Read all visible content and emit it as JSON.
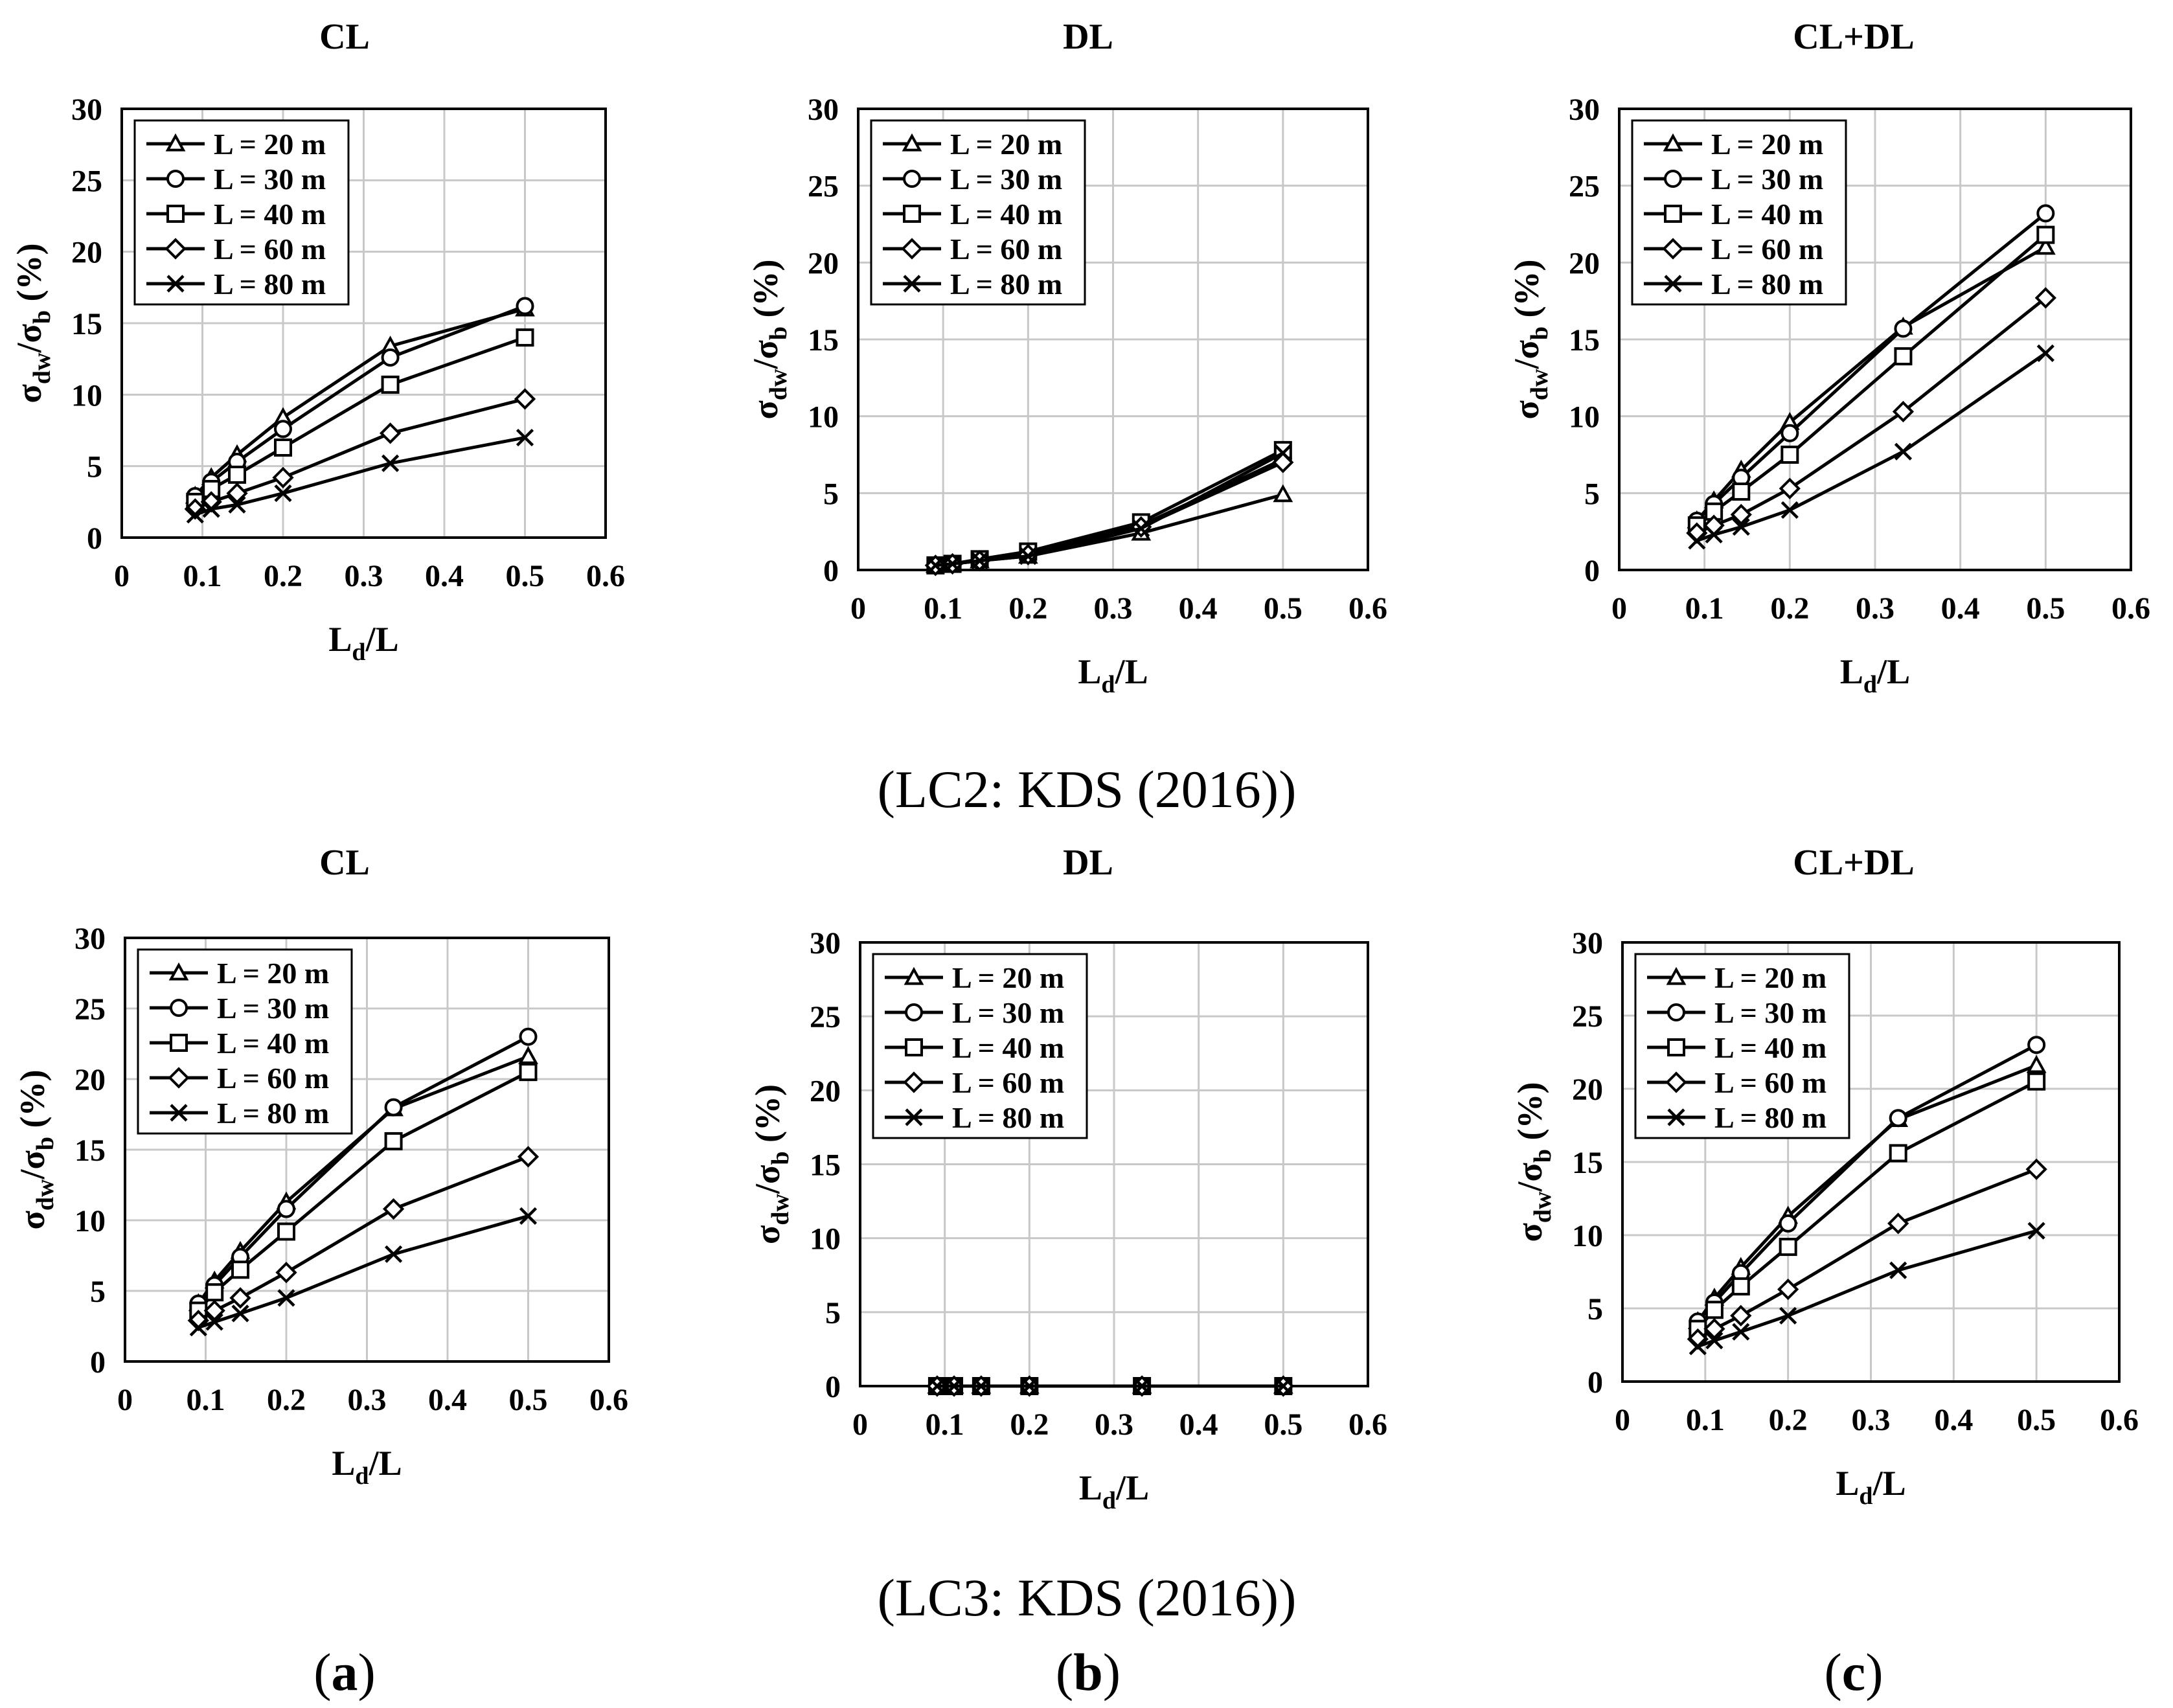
{
  "figure": {
    "row_captions": [
      "(LC2: KDS (2016))",
      "(LC3: KDS (2016))"
    ],
    "col_labels": [
      {
        "open": "(",
        "letter": "a",
        "close": ")"
      },
      {
        "open": "(",
        "letter": "b",
        "close": ")"
      },
      {
        "open": "(",
        "letter": "c",
        "close": ")"
      }
    ]
  },
  "chart_data": [
    {
      "type": "line",
      "row": "LC2",
      "title": "CL",
      "xlabel": "Ld/L",
      "ylabel": "σdw/σb (%)",
      "xlim": [
        0,
        0.6
      ],
      "ylim": [
        0,
        30
      ],
      "xticks": [
        "0",
        "0.1",
        "0.2",
        "0.3",
        "0.4",
        "0.5",
        "0.6"
      ],
      "yticks": [
        "0",
        "5",
        "10",
        "15",
        "20",
        "25",
        "30"
      ],
      "grid": true,
      "legend": "top-left",
      "x": [
        0.091,
        0.111,
        0.143,
        0.2,
        0.333,
        0.5
      ],
      "series": [
        {
          "name": "L = 20 m",
          "marker": "triangle",
          "values": [
            2.9,
            4.2,
            5.8,
            8.4,
            13.4,
            16.0
          ]
        },
        {
          "name": "L = 30 m",
          "marker": "circle",
          "values": [
            2.9,
            3.9,
            5.3,
            7.6,
            12.6,
            16.2
          ]
        },
        {
          "name": "L = 40 m",
          "marker": "square",
          "values": [
            2.5,
            3.4,
            4.4,
            6.3,
            10.7,
            14.0
          ]
        },
        {
          "name": "L = 60 m",
          "marker": "diamond",
          "values": [
            2.0,
            2.5,
            3.1,
            4.2,
            7.3,
            9.7
          ]
        },
        {
          "name": "L = 80 m",
          "marker": "x",
          "values": [
            1.6,
            2.0,
            2.3,
            3.1,
            5.2,
            7.0
          ]
        }
      ]
    },
    {
      "type": "line",
      "row": "LC2",
      "title": "DL",
      "xlabel": "Ld/L",
      "ylabel": "σdw/σb (%)",
      "xlim": [
        0,
        0.6
      ],
      "ylim": [
        0,
        30
      ],
      "xticks": [
        "0",
        "0.1",
        "0.2",
        "0.3",
        "0.4",
        "0.5",
        "0.6"
      ],
      "yticks": [
        "0",
        "5",
        "10",
        "15",
        "20",
        "25",
        "30"
      ],
      "grid": true,
      "legend": "top-left",
      "x": [
        0.091,
        0.111,
        0.143,
        0.2,
        0.333,
        0.5
      ],
      "series": [
        {
          "name": "L = 20 m",
          "marker": "triangle",
          "values": [
            0.3,
            0.4,
            0.6,
            0.9,
            2.4,
            4.9
          ]
        },
        {
          "name": "L = 30 m",
          "marker": "circle",
          "values": [
            0.3,
            0.4,
            0.6,
            1.1,
            2.9,
            7.2
          ]
        },
        {
          "name": "L = 40 m",
          "marker": "square",
          "values": [
            0.3,
            0.4,
            0.7,
            1.2,
            3.1,
            7.8
          ]
        },
        {
          "name": "L = 60 m",
          "marker": "diamond",
          "values": [
            0.3,
            0.4,
            0.6,
            1.0,
            2.8,
            7.0
          ]
        },
        {
          "name": "L = 80 m",
          "marker": "x",
          "values": [
            0.3,
            0.4,
            0.6,
            0.9,
            2.7,
            7.6
          ]
        }
      ]
    },
    {
      "type": "line",
      "row": "LC2",
      "title": "CL+DL",
      "xlabel": "Ld/L",
      "ylabel": "σdw/σb (%)",
      "xlim": [
        0,
        0.6
      ],
      "ylim": [
        0,
        30
      ],
      "xticks": [
        "0",
        "0.1",
        "0.2",
        "0.3",
        "0.4",
        "0.5",
        "0.6"
      ],
      "yticks": [
        "0",
        "5",
        "10",
        "15",
        "20",
        "25",
        "30"
      ],
      "grid": true,
      "legend": "top-left",
      "x": [
        0.091,
        0.111,
        0.143,
        0.2,
        0.333,
        0.5
      ],
      "series": [
        {
          "name": "L = 20 m",
          "marker": "triangle",
          "values": [
            3.2,
            4.5,
            6.5,
            9.6,
            15.8,
            21.0
          ]
        },
        {
          "name": "L = 30 m",
          "marker": "circle",
          "values": [
            3.2,
            4.3,
            6.0,
            8.9,
            15.7,
            23.2
          ]
        },
        {
          "name": "L = 40 m",
          "marker": "square",
          "values": [
            2.9,
            3.8,
            5.1,
            7.5,
            13.9,
            21.8
          ]
        },
        {
          "name": "L = 60 m",
          "marker": "diamond",
          "values": [
            2.4,
            2.9,
            3.6,
            5.3,
            10.3,
            17.7
          ]
        },
        {
          "name": "L = 80 m",
          "marker": "x",
          "values": [
            1.9,
            2.3,
            2.8,
            3.9,
            7.7,
            14.1
          ]
        }
      ]
    },
    {
      "type": "line",
      "row": "LC3",
      "title": "CL",
      "xlabel": "Ld/L",
      "ylabel": "σdw/σb (%)",
      "xlim": [
        0,
        0.6
      ],
      "ylim": [
        0,
        30
      ],
      "xticks": [
        "0",
        "0.1",
        "0.2",
        "0.3",
        "0.4",
        "0.5",
        "0.6"
      ],
      "yticks": [
        "0",
        "5",
        "10",
        "15",
        "20",
        "25",
        "30"
      ],
      "grid": true,
      "legend": "top-left",
      "x": [
        0.091,
        0.111,
        0.143,
        0.2,
        0.333,
        0.5
      ],
      "series": [
        {
          "name": "L = 20 m",
          "marker": "triangle",
          "values": [
            4.1,
            5.7,
            7.8,
            11.3,
            17.9,
            21.6
          ]
        },
        {
          "name": "L = 30 m",
          "marker": "circle",
          "values": [
            4.1,
            5.4,
            7.4,
            10.8,
            18.0,
            23.0
          ]
        },
        {
          "name": "L = 40 m",
          "marker": "square",
          "values": [
            3.6,
            4.9,
            6.5,
            9.2,
            15.6,
            20.5
          ]
        },
        {
          "name": "L = 60 m",
          "marker": "diamond",
          "values": [
            2.9,
            3.6,
            4.5,
            6.3,
            10.8,
            14.5
          ]
        },
        {
          "name": "L = 80 m",
          "marker": "x",
          "values": [
            2.4,
            2.8,
            3.4,
            4.5,
            7.6,
            10.3
          ]
        }
      ]
    },
    {
      "type": "line",
      "row": "LC3",
      "title": "DL",
      "xlabel": "Ld/L",
      "ylabel": "σdw/σb (%)",
      "xlim": [
        0,
        0.6
      ],
      "ylim": [
        0,
        30
      ],
      "xticks": [
        "0",
        "0.1",
        "0.2",
        "0.3",
        "0.4",
        "0.5",
        "0.6"
      ],
      "yticks": [
        "0",
        "5",
        "10",
        "15",
        "20",
        "25",
        "30"
      ],
      "grid": true,
      "legend": "top-left",
      "x": [
        0.091,
        0.111,
        0.143,
        0.2,
        0.333,
        0.5
      ],
      "series": [
        {
          "name": "L = 20 m",
          "marker": "triangle",
          "values": [
            0,
            0,
            0,
            0,
            0,
            0
          ]
        },
        {
          "name": "L = 30 m",
          "marker": "circle",
          "values": [
            0,
            0,
            0,
            0,
            0,
            0
          ]
        },
        {
          "name": "L = 40 m",
          "marker": "square",
          "values": [
            0,
            0,
            0,
            0,
            0,
            0
          ]
        },
        {
          "name": "L = 60 m",
          "marker": "diamond",
          "values": [
            0,
            0,
            0,
            0,
            0,
            0
          ]
        },
        {
          "name": "L = 80 m",
          "marker": "x",
          "values": [
            0,
            0,
            0,
            0,
            0,
            0
          ]
        }
      ]
    },
    {
      "type": "line",
      "row": "LC3",
      "title": "CL+DL",
      "xlabel": "Ld/L",
      "ylabel": "σdw/σb (%)",
      "xlim": [
        0,
        0.6
      ],
      "ylim": [
        0,
        30
      ],
      "xticks": [
        "0",
        "0.1",
        "0.2",
        "0.3",
        "0.4",
        "0.5",
        "0.6"
      ],
      "yticks": [
        "0",
        "5",
        "10",
        "15",
        "20",
        "25",
        "30"
      ],
      "grid": true,
      "legend": "top-left",
      "x": [
        0.091,
        0.111,
        0.143,
        0.2,
        0.333,
        0.5
      ],
      "series": [
        {
          "name": "L = 20 m",
          "marker": "triangle",
          "values": [
            4.1,
            5.7,
            7.8,
            11.3,
            17.9,
            21.6
          ]
        },
        {
          "name": "L = 30 m",
          "marker": "circle",
          "values": [
            4.1,
            5.4,
            7.4,
            10.8,
            18.0,
            23.0
          ]
        },
        {
          "name": "L = 40 m",
          "marker": "square",
          "values": [
            3.6,
            4.9,
            6.5,
            9.2,
            15.6,
            20.5
          ]
        },
        {
          "name": "L = 60 m",
          "marker": "diamond",
          "values": [
            2.9,
            3.6,
            4.5,
            6.3,
            10.8,
            14.5
          ]
        },
        {
          "name": "L = 80 m",
          "marker": "x",
          "values": [
            2.4,
            2.8,
            3.4,
            4.5,
            7.6,
            10.3
          ]
        }
      ]
    }
  ]
}
